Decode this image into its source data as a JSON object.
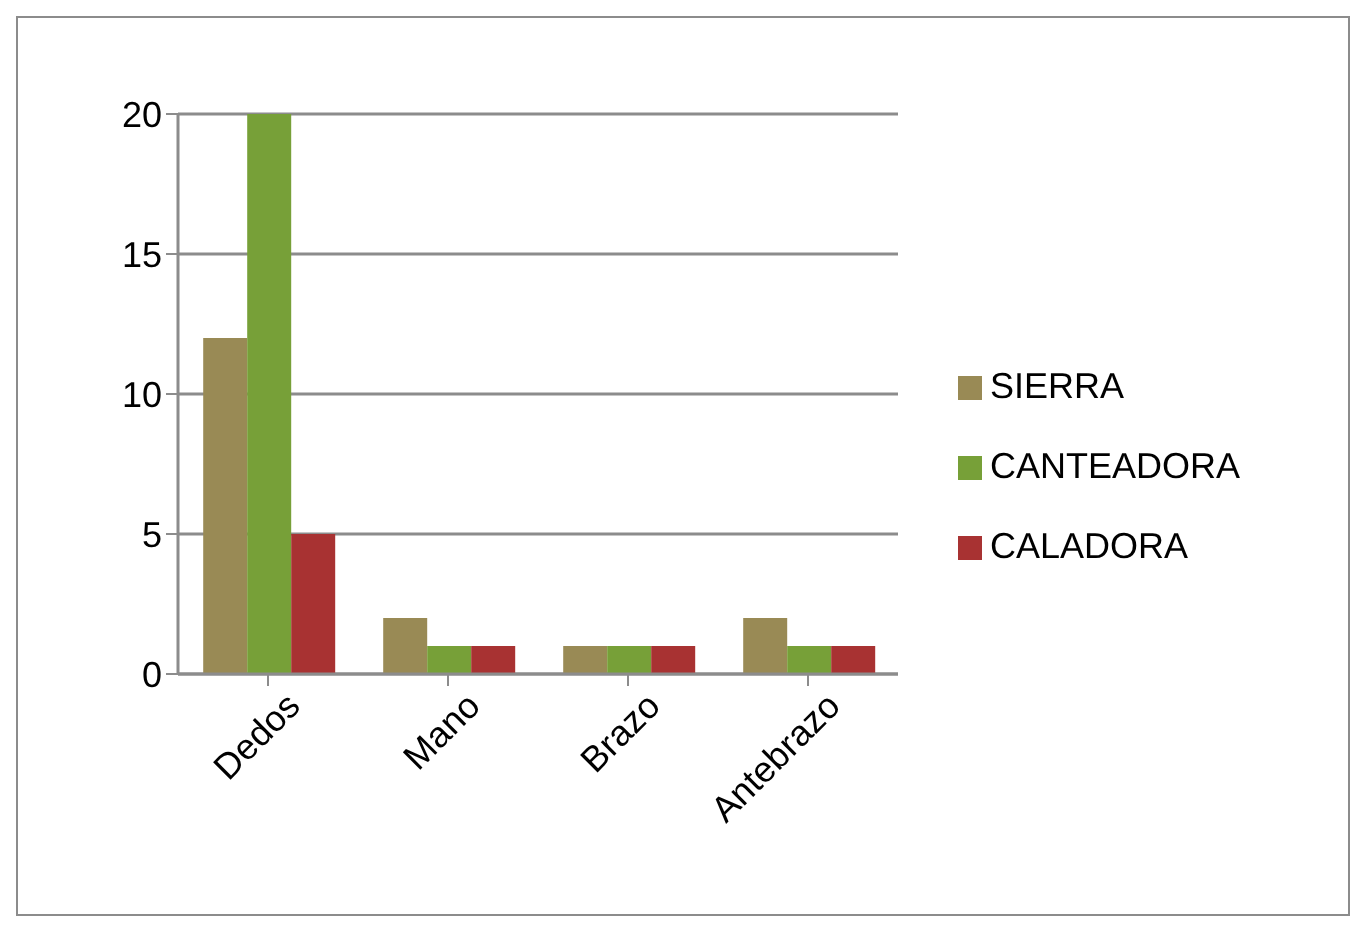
{
  "chart_data": {
    "type": "bar",
    "categories": [
      "Dedos",
      "Mano",
      "Brazo",
      "Antebrazo"
    ],
    "series": [
      {
        "name": "SIERRA",
        "color": "#998a55",
        "values": [
          12,
          2,
          1,
          2
        ]
      },
      {
        "name": "CANTEADORA",
        "color": "#77a038",
        "values": [
          20,
          1,
          1,
          1
        ]
      },
      {
        "name": "CALADORA",
        "color": "#a83232",
        "values": [
          5,
          1,
          1,
          1
        ]
      }
    ],
    "ylim": [
      0,
      20
    ],
    "yticks": [
      0,
      5,
      10,
      15,
      20
    ],
    "grid": "y",
    "legend": "right"
  }
}
